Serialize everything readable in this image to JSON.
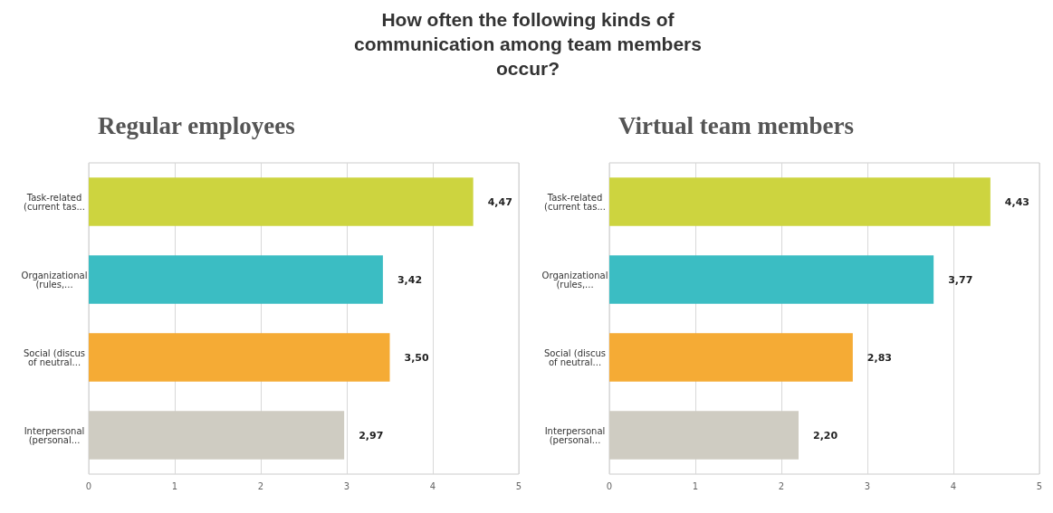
{
  "chart_data": [
    {
      "type": "bar",
      "orientation": "horizontal",
      "title": "How often the following kinds of\ncommunication among team members\noccur?",
      "subtitle": "Regular employees",
      "categories": [
        "Task-related\n(current tas...",
        "Organizational\n(rules,...",
        "Social (discus\nof neutral...",
        "Interpersonal\n(personal..."
      ],
      "values": [
        4.47,
        3.42,
        3.5,
        2.97
      ],
      "colors": [
        "#cdd43f",
        "#3bbdc3",
        "#f5ab35",
        "#cfccc2"
      ],
      "value_labels": [
        "4,47",
        "3,42",
        "3,50",
        "2,97"
      ],
      "xlim": [
        0,
        5
      ],
      "xticks": [
        0,
        1,
        2,
        3,
        4,
        5
      ],
      "grid": "x"
    },
    {
      "type": "bar",
      "orientation": "horizontal",
      "subtitle": "Virtual team members",
      "categories": [
        "Task-related\n(current tas...",
        "Organizational\n(rules,...",
        "Social (discus\nof neutral...",
        "Interpersonal\n(personal..."
      ],
      "values": [
        4.43,
        3.77,
        2.83,
        2.2
      ],
      "colors": [
        "#cdd43f",
        "#3bbdc3",
        "#f5ab35",
        "#cfccc2"
      ],
      "value_labels": [
        "4,43",
        "3,77",
        "2,83",
        "2,20"
      ],
      "xlim": [
        0,
        5
      ],
      "xticks": [
        0,
        1,
        2,
        3,
        4,
        5
      ],
      "grid": "x"
    }
  ]
}
